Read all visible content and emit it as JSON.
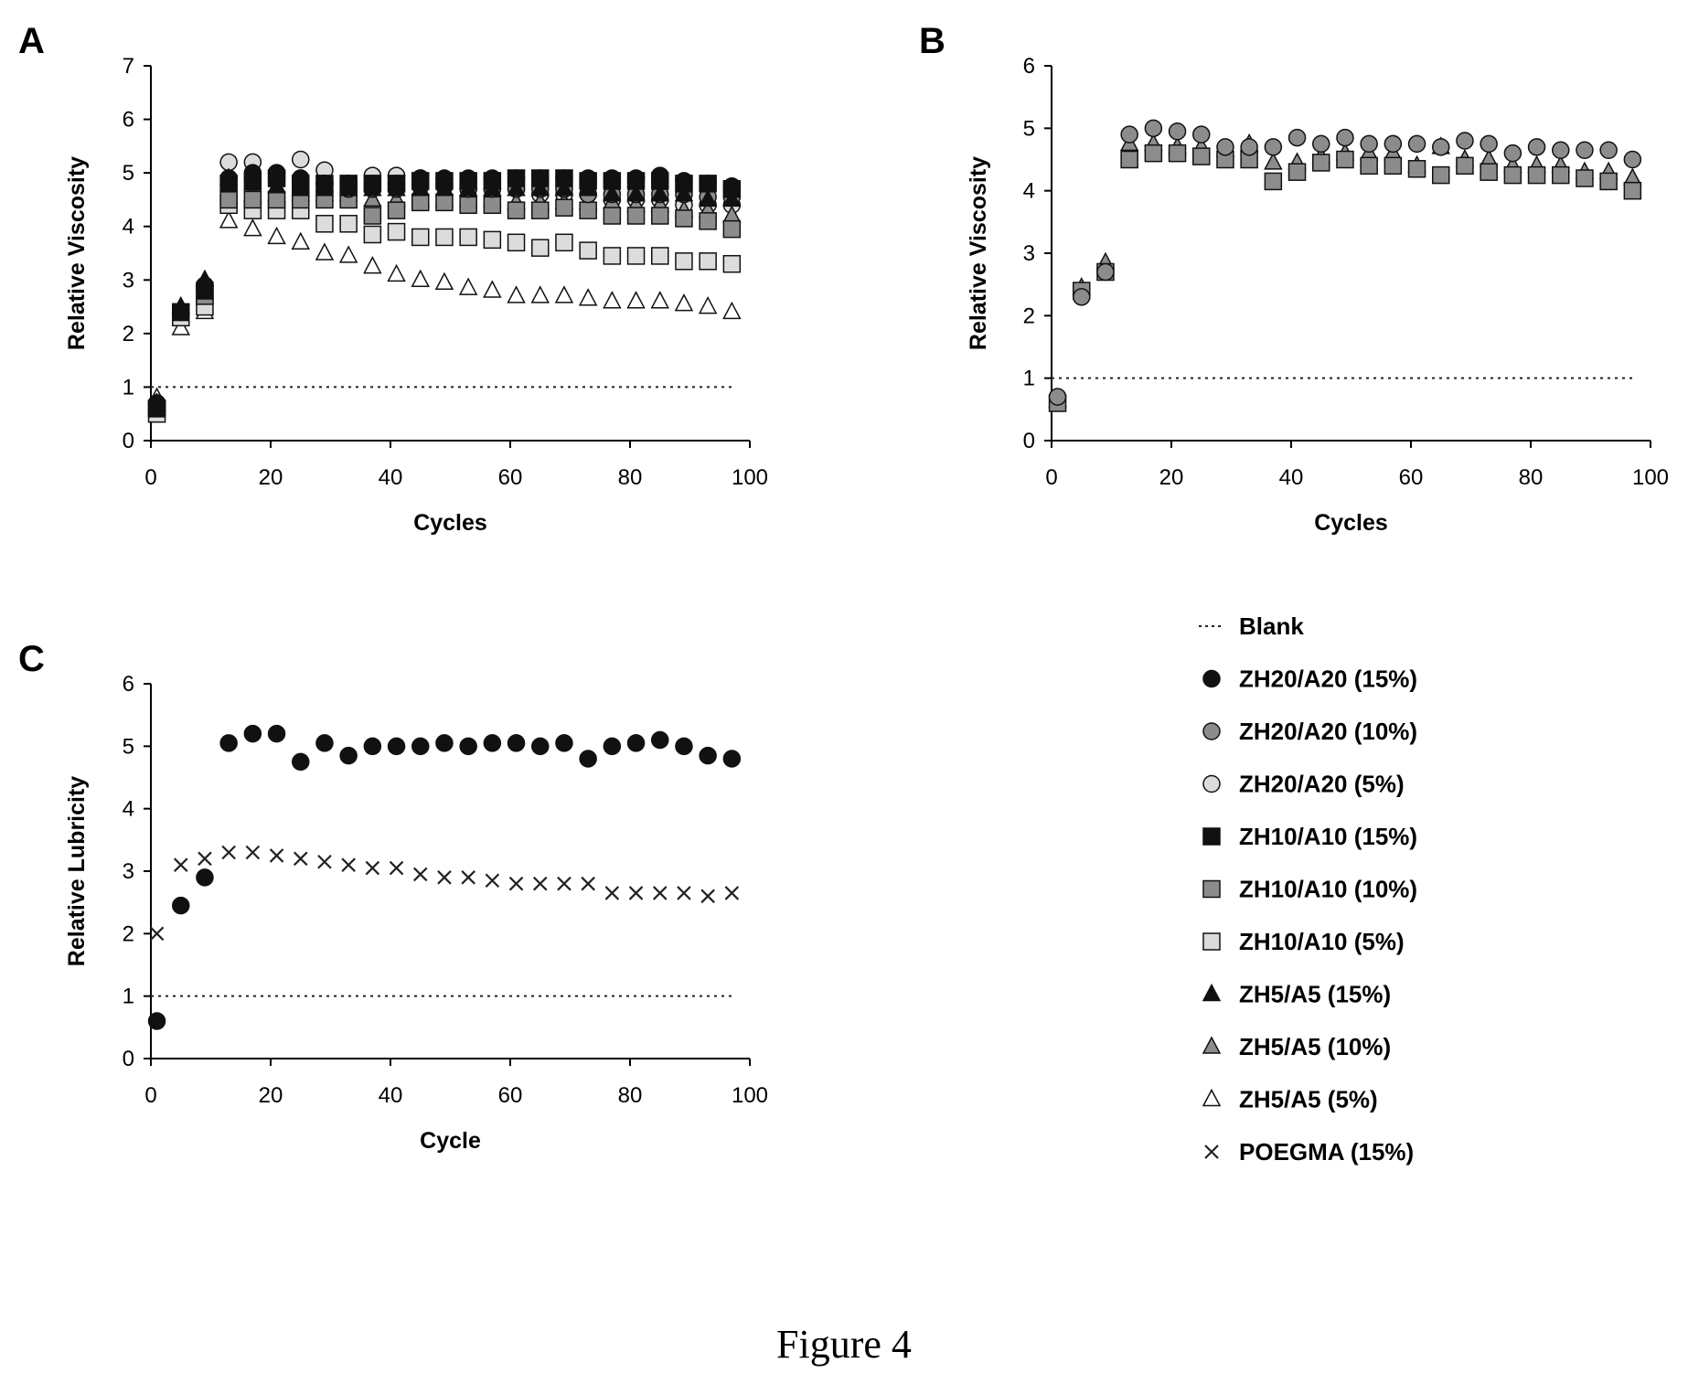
{
  "figure": {
    "caption": "Figure 4"
  },
  "legend": [
    {
      "key": "blank",
      "label": "Blank"
    },
    {
      "key": "zh20_15",
      "label": "ZH20/A20 (15%)"
    },
    {
      "key": "zh20_10",
      "label": "ZH20/A20 (10%)"
    },
    {
      "key": "zh20_5",
      "label": "ZH20/A20 (5%)"
    },
    {
      "key": "zh10_15",
      "label": "ZH10/A10 (15%)"
    },
    {
      "key": "zh10_10",
      "label": "ZH10/A10 (10%)"
    },
    {
      "key": "zh10_5",
      "label": "ZH10/A10 (5%)"
    },
    {
      "key": "zh5_15",
      "label": "ZH5/A5 (15%)"
    },
    {
      "key": "zh5_10",
      "label": "ZH5/A5 (10%)"
    },
    {
      "key": "zh5_5",
      "label": "ZH5/A5 (5%)"
    },
    {
      "key": "poegma",
      "label": "POEGMA (15%)"
    }
  ],
  "styles": {
    "blank": {
      "marker": "dotted-line",
      "fill": "none"
    },
    "zh20_15": {
      "marker": "circle",
      "fill": "#111111"
    },
    "zh20_10": {
      "marker": "circle",
      "fill": "#8c8c8c"
    },
    "zh20_5": {
      "marker": "circle",
      "fill": "#dcdcdc"
    },
    "zh10_15": {
      "marker": "square",
      "fill": "#111111"
    },
    "zh10_10": {
      "marker": "square",
      "fill": "#8c8c8c"
    },
    "zh10_5": {
      "marker": "square",
      "fill": "#dcdcdc"
    },
    "zh5_15": {
      "marker": "triangle",
      "fill": "#111111"
    },
    "zh5_10": {
      "marker": "triangle",
      "fill": "#8c8c8c"
    },
    "zh5_5": {
      "marker": "triangle",
      "fill": "#ffffff"
    },
    "poegma": {
      "marker": "x",
      "fill": "none"
    }
  },
  "chart_data": [
    {
      "panel_label": "A",
      "type": "scatter",
      "xlabel": "Cycles",
      "ylabel": "Relative Viscosity",
      "xlim": [
        0,
        100
      ],
      "ylim": [
        0,
        7
      ],
      "xticks": [
        "0",
        "20",
        "40",
        "60",
        "80",
        "100"
      ],
      "yticks": [
        "0",
        "1",
        "2",
        "3",
        "4",
        "5",
        "6",
        "7"
      ],
      "x": [
        1,
        5,
        9,
        13,
        17,
        21,
        25,
        29,
        33,
        37,
        41,
        45,
        49,
        53,
        57,
        61,
        65,
        69,
        73,
        77,
        81,
        85,
        89,
        93,
        97
      ],
      "blank_level": 1,
      "series": [
        {
          "key": "zh20_15",
          "values": [
            0.7,
            2.4,
            2.9,
            4.9,
            5.0,
            5.0,
            4.9,
            4.8,
            4.8,
            4.8,
            4.8,
            4.9,
            4.9,
            4.9,
            4.9,
            4.9,
            4.9,
            4.9,
            4.9,
            4.9,
            4.9,
            4.95,
            4.85,
            4.8,
            4.75
          ]
        },
        {
          "key": "zh20_10",
          "values": [
            0.6,
            2.4,
            2.9,
            4.9,
            4.9,
            4.9,
            4.9,
            4.8,
            4.7,
            4.7,
            4.7,
            4.75,
            4.75,
            4.7,
            4.7,
            4.7,
            4.7,
            4.7,
            4.6,
            4.6,
            4.6,
            4.6,
            4.6,
            4.55,
            4.55
          ]
        },
        {
          "key": "zh20_5",
          "values": [
            0.7,
            2.4,
            2.9,
            5.2,
            5.2,
            5.0,
            5.25,
            5.05,
            4.8,
            4.95,
            4.95,
            4.9,
            4.8,
            4.7,
            4.7,
            4.7,
            4.6,
            4.6,
            4.6,
            4.5,
            4.5,
            4.5,
            4.4,
            4.4,
            4.4
          ]
        },
        {
          "key": "zh10_15",
          "values": [
            0.6,
            2.4,
            2.8,
            4.8,
            4.85,
            4.9,
            4.8,
            4.8,
            4.8,
            4.8,
            4.8,
            4.85,
            4.85,
            4.85,
            4.85,
            4.9,
            4.9,
            4.9,
            4.85,
            4.85,
            4.85,
            4.85,
            4.8,
            4.8,
            4.7
          ]
        },
        {
          "key": "zh10_10",
          "values": [
            0.6,
            2.4,
            2.7,
            4.5,
            4.5,
            4.5,
            4.5,
            4.5,
            4.5,
            4.2,
            4.3,
            4.45,
            4.45,
            4.4,
            4.4,
            4.3,
            4.3,
            4.35,
            4.3,
            4.2,
            4.2,
            4.2,
            4.15,
            4.1,
            3.95
          ]
        },
        {
          "key": "zh10_5",
          "values": [
            0.5,
            2.3,
            2.5,
            4.4,
            4.3,
            4.3,
            4.3,
            4.05,
            4.05,
            3.85,
            3.9,
            3.8,
            3.8,
            3.8,
            3.75,
            3.7,
            3.6,
            3.7,
            3.55,
            3.45,
            3.45,
            3.45,
            3.35,
            3.35,
            3.3
          ]
        },
        {
          "key": "zh5_15",
          "values": [
            0.7,
            2.5,
            3.0,
            4.9,
            4.8,
            4.75,
            4.7,
            4.7,
            4.7,
            4.7,
            4.7,
            4.7,
            4.7,
            4.7,
            4.7,
            4.7,
            4.7,
            4.7,
            4.7,
            4.6,
            4.6,
            4.6,
            4.6,
            4.5,
            4.5
          ]
        },
        {
          "key": "zh5_10",
          "values": [
            0.6,
            2.5,
            2.95,
            4.7,
            4.6,
            4.6,
            4.6,
            4.6,
            4.6,
            4.5,
            4.5,
            4.5,
            4.5,
            4.5,
            4.5,
            4.45,
            4.45,
            4.45,
            4.45,
            4.45,
            4.4,
            4.4,
            4.3,
            4.3,
            4.2
          ]
        },
        {
          "key": "zh5_5",
          "values": [
            0.8,
            2.1,
            2.4,
            4.1,
            3.95,
            3.8,
            3.7,
            3.5,
            3.45,
            3.25,
            3.1,
            3.0,
            2.95,
            2.85,
            2.8,
            2.7,
            2.7,
            2.7,
            2.65,
            2.6,
            2.6,
            2.6,
            2.55,
            2.5,
            2.4
          ]
        }
      ]
    },
    {
      "panel_label": "B",
      "type": "scatter",
      "xlabel": "Cycles",
      "ylabel": "Relative Viscosity",
      "xlim": [
        0,
        100
      ],
      "ylim": [
        0,
        6
      ],
      "xticks": [
        "0",
        "20",
        "40",
        "60",
        "80",
        "100"
      ],
      "yticks": [
        "0",
        "1",
        "2",
        "3",
        "4",
        "5",
        "6"
      ],
      "x": [
        1,
        5,
        9,
        13,
        17,
        21,
        25,
        29,
        33,
        37,
        41,
        45,
        49,
        53,
        57,
        61,
        65,
        69,
        73,
        77,
        81,
        85,
        89,
        93,
        97
      ],
      "blank_level": 1,
      "series": [
        {
          "key": "zh20_10",
          "values": [
            0.7,
            2.3,
            2.7,
            4.9,
            5.0,
            4.95,
            4.9,
            4.7,
            4.7,
            4.7,
            4.85,
            4.75,
            4.85,
            4.75,
            4.75,
            4.75,
            4.7,
            4.8,
            4.75,
            4.6,
            4.7,
            4.65,
            4.65,
            4.65,
            4.5
          ]
        },
        {
          "key": "zh10_10",
          "values": [
            0.6,
            2.4,
            2.7,
            4.5,
            4.6,
            4.6,
            4.55,
            4.5,
            4.5,
            4.15,
            4.3,
            4.45,
            4.5,
            4.4,
            4.4,
            4.35,
            4.25,
            4.4,
            4.3,
            4.25,
            4.25,
            4.25,
            4.2,
            4.15,
            4.0
          ]
        },
        {
          "key": "zh5_10",
          "values": [
            0.65,
            2.45,
            2.85,
            4.75,
            4.75,
            4.7,
            4.7,
            4.65,
            4.75,
            4.45,
            4.45,
            4.55,
            4.6,
            4.6,
            4.6,
            4.4,
            4.7,
            4.5,
            4.5,
            4.4,
            4.4,
            4.4,
            4.3,
            4.3,
            4.2
          ]
        }
      ]
    },
    {
      "panel_label": "C",
      "type": "scatter",
      "xlabel": "Cycle",
      "ylabel": "Relative Lubricity",
      "xlim": [
        0,
        100
      ],
      "ylim": [
        0,
        6
      ],
      "xticks": [
        "0",
        "20",
        "40",
        "60",
        "80",
        "100"
      ],
      "yticks": [
        "0",
        "1",
        "2",
        "3",
        "4",
        "5",
        "6"
      ],
      "x": [
        1,
        5,
        9,
        13,
        17,
        21,
        25,
        29,
        33,
        37,
        41,
        45,
        49,
        53,
        57,
        61,
        65,
        69,
        73,
        77,
        81,
        85,
        89,
        93,
        97
      ],
      "blank_level": 1,
      "series": [
        {
          "key": "zh20_15",
          "values": [
            0.6,
            2.45,
            2.9,
            5.05,
            5.2,
            5.2,
            4.75,
            5.05,
            4.85,
            5.0,
            5.0,
            5.0,
            5.05,
            5.0,
            5.05,
            5.05,
            5.0,
            5.05,
            4.8,
            5.0,
            5.05,
            5.1,
            5.0,
            4.85,
            4.8
          ]
        },
        {
          "key": "poegma",
          "values": [
            2.0,
            3.1,
            3.2,
            3.3,
            3.3,
            3.25,
            3.2,
            3.15,
            3.1,
            3.05,
            3.05,
            2.95,
            2.9,
            2.9,
            2.85,
            2.8,
            2.8,
            2.8,
            2.8,
            2.65,
            2.65,
            2.65,
            2.65,
            2.6,
            2.65
          ]
        }
      ]
    }
  ]
}
